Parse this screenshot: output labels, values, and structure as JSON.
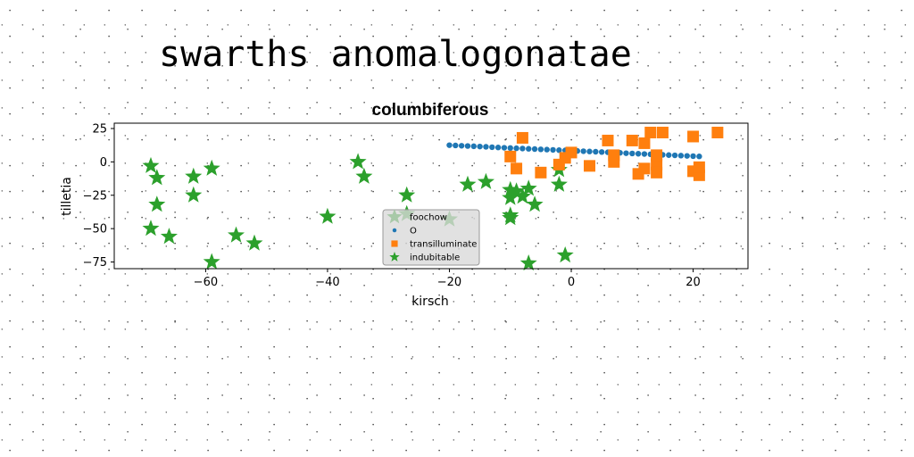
{
  "page": {
    "title": "swarths anomalogonatae"
  },
  "chart_data": {
    "type": "scatter",
    "title": "columbiferous",
    "xlabel": "kirsch",
    "ylabel": "tilletia",
    "xlim": [
      -75,
      29
    ],
    "ylim": [
      -80,
      29
    ],
    "xticks": [
      -60,
      -40,
      -20,
      0,
      20
    ],
    "yticks": [
      25,
      0,
      -25,
      -50,
      -75
    ],
    "grid": false,
    "legend": {
      "placement": "lower-center",
      "entries": [
        "foochow",
        "O",
        "transilluminate",
        "indubitable"
      ]
    },
    "series": [
      {
        "name": "O",
        "marker": "circle",
        "color": "#1f77b4",
        "points": [
          [
            -20,
            12.5
          ],
          [
            -19,
            12.3
          ],
          [
            -18,
            12.1
          ],
          [
            -17,
            11.9
          ],
          [
            -16,
            11.7
          ],
          [
            -15,
            11.5
          ],
          [
            -14,
            11.3
          ],
          [
            -13,
            11.0
          ],
          [
            -12,
            10.8
          ],
          [
            -11,
            10.6
          ],
          [
            -10,
            10.4
          ],
          [
            -9,
            10.2
          ],
          [
            -8,
            10.0
          ],
          [
            -7,
            9.8
          ],
          [
            -6,
            9.6
          ],
          [
            -5,
            9.4
          ],
          [
            -4,
            9.2
          ],
          [
            -3,
            9.0
          ],
          [
            -2,
            8.8
          ],
          [
            -1,
            8.6
          ],
          [
            0,
            8.4
          ],
          [
            1,
            8.2
          ],
          [
            2,
            8.0
          ],
          [
            3,
            7.8
          ],
          [
            4,
            7.6
          ],
          [
            5,
            7.4
          ],
          [
            6,
            7.2
          ],
          [
            7,
            7.0
          ],
          [
            8,
            6.8
          ],
          [
            9,
            6.5
          ],
          [
            10,
            6.3
          ],
          [
            11,
            6.1
          ],
          [
            12,
            5.9
          ],
          [
            13,
            5.7
          ],
          [
            14,
            5.5
          ],
          [
            15,
            5.3
          ],
          [
            16,
            5.1
          ],
          [
            17,
            4.9
          ],
          [
            18,
            4.7
          ],
          [
            19,
            4.5
          ],
          [
            20,
            4.3
          ],
          [
            21,
            4.1
          ]
        ]
      },
      {
        "name": "transilluminate",
        "marker": "square",
        "color": "#ff7f0e",
        "points": [
          [
            -8,
            18
          ],
          [
            -10,
            4
          ],
          [
            -9,
            -5
          ],
          [
            -5,
            -8
          ],
          [
            -2,
            -2
          ],
          [
            -1,
            3
          ],
          [
            0,
            7
          ],
          [
            3,
            -3
          ],
          [
            6,
            16
          ],
          [
            7,
            5
          ],
          [
            7,
            0
          ],
          [
            10,
            16
          ],
          [
            11,
            -9
          ],
          [
            12,
            14
          ],
          [
            12,
            -5
          ],
          [
            13,
            22
          ],
          [
            14,
            -2
          ],
          [
            14,
            -8
          ],
          [
            14,
            5
          ],
          [
            15,
            22
          ],
          [
            20,
            19
          ],
          [
            20,
            -7
          ],
          [
            21,
            -10
          ],
          [
            21,
            -4
          ],
          [
            24,
            22
          ]
        ]
      },
      {
        "name": "indubitable",
        "marker": "star",
        "color": "#2ca02c",
        "points": [
          [
            -69,
            -3
          ],
          [
            -69,
            -50
          ],
          [
            -68,
            -12
          ],
          [
            -68,
            -32
          ],
          [
            -66,
            -56
          ],
          [
            -62,
            -11
          ],
          [
            -62,
            -25
          ],
          [
            -59,
            -5
          ],
          [
            -59,
            -75
          ],
          [
            -55,
            -55
          ],
          [
            -52,
            -61
          ],
          [
            -40,
            -41
          ],
          [
            -35,
            0
          ],
          [
            -34,
            -11
          ],
          [
            -27,
            -25
          ],
          [
            -27,
            -39
          ],
          [
            -20,
            -43
          ],
          [
            -17,
            -17
          ],
          [
            -14,
            -15
          ],
          [
            -10,
            -27
          ],
          [
            -10,
            -21
          ],
          [
            -10,
            -42
          ],
          [
            -10,
            -40
          ],
          [
            -9,
            -22
          ],
          [
            -8,
            -26
          ],
          [
            -7,
            -20
          ],
          [
            -7,
            -76
          ],
          [
            -6,
            -32
          ],
          [
            -2,
            -6
          ],
          [
            -2,
            -17
          ],
          [
            -1,
            -70
          ]
        ]
      }
    ]
  }
}
